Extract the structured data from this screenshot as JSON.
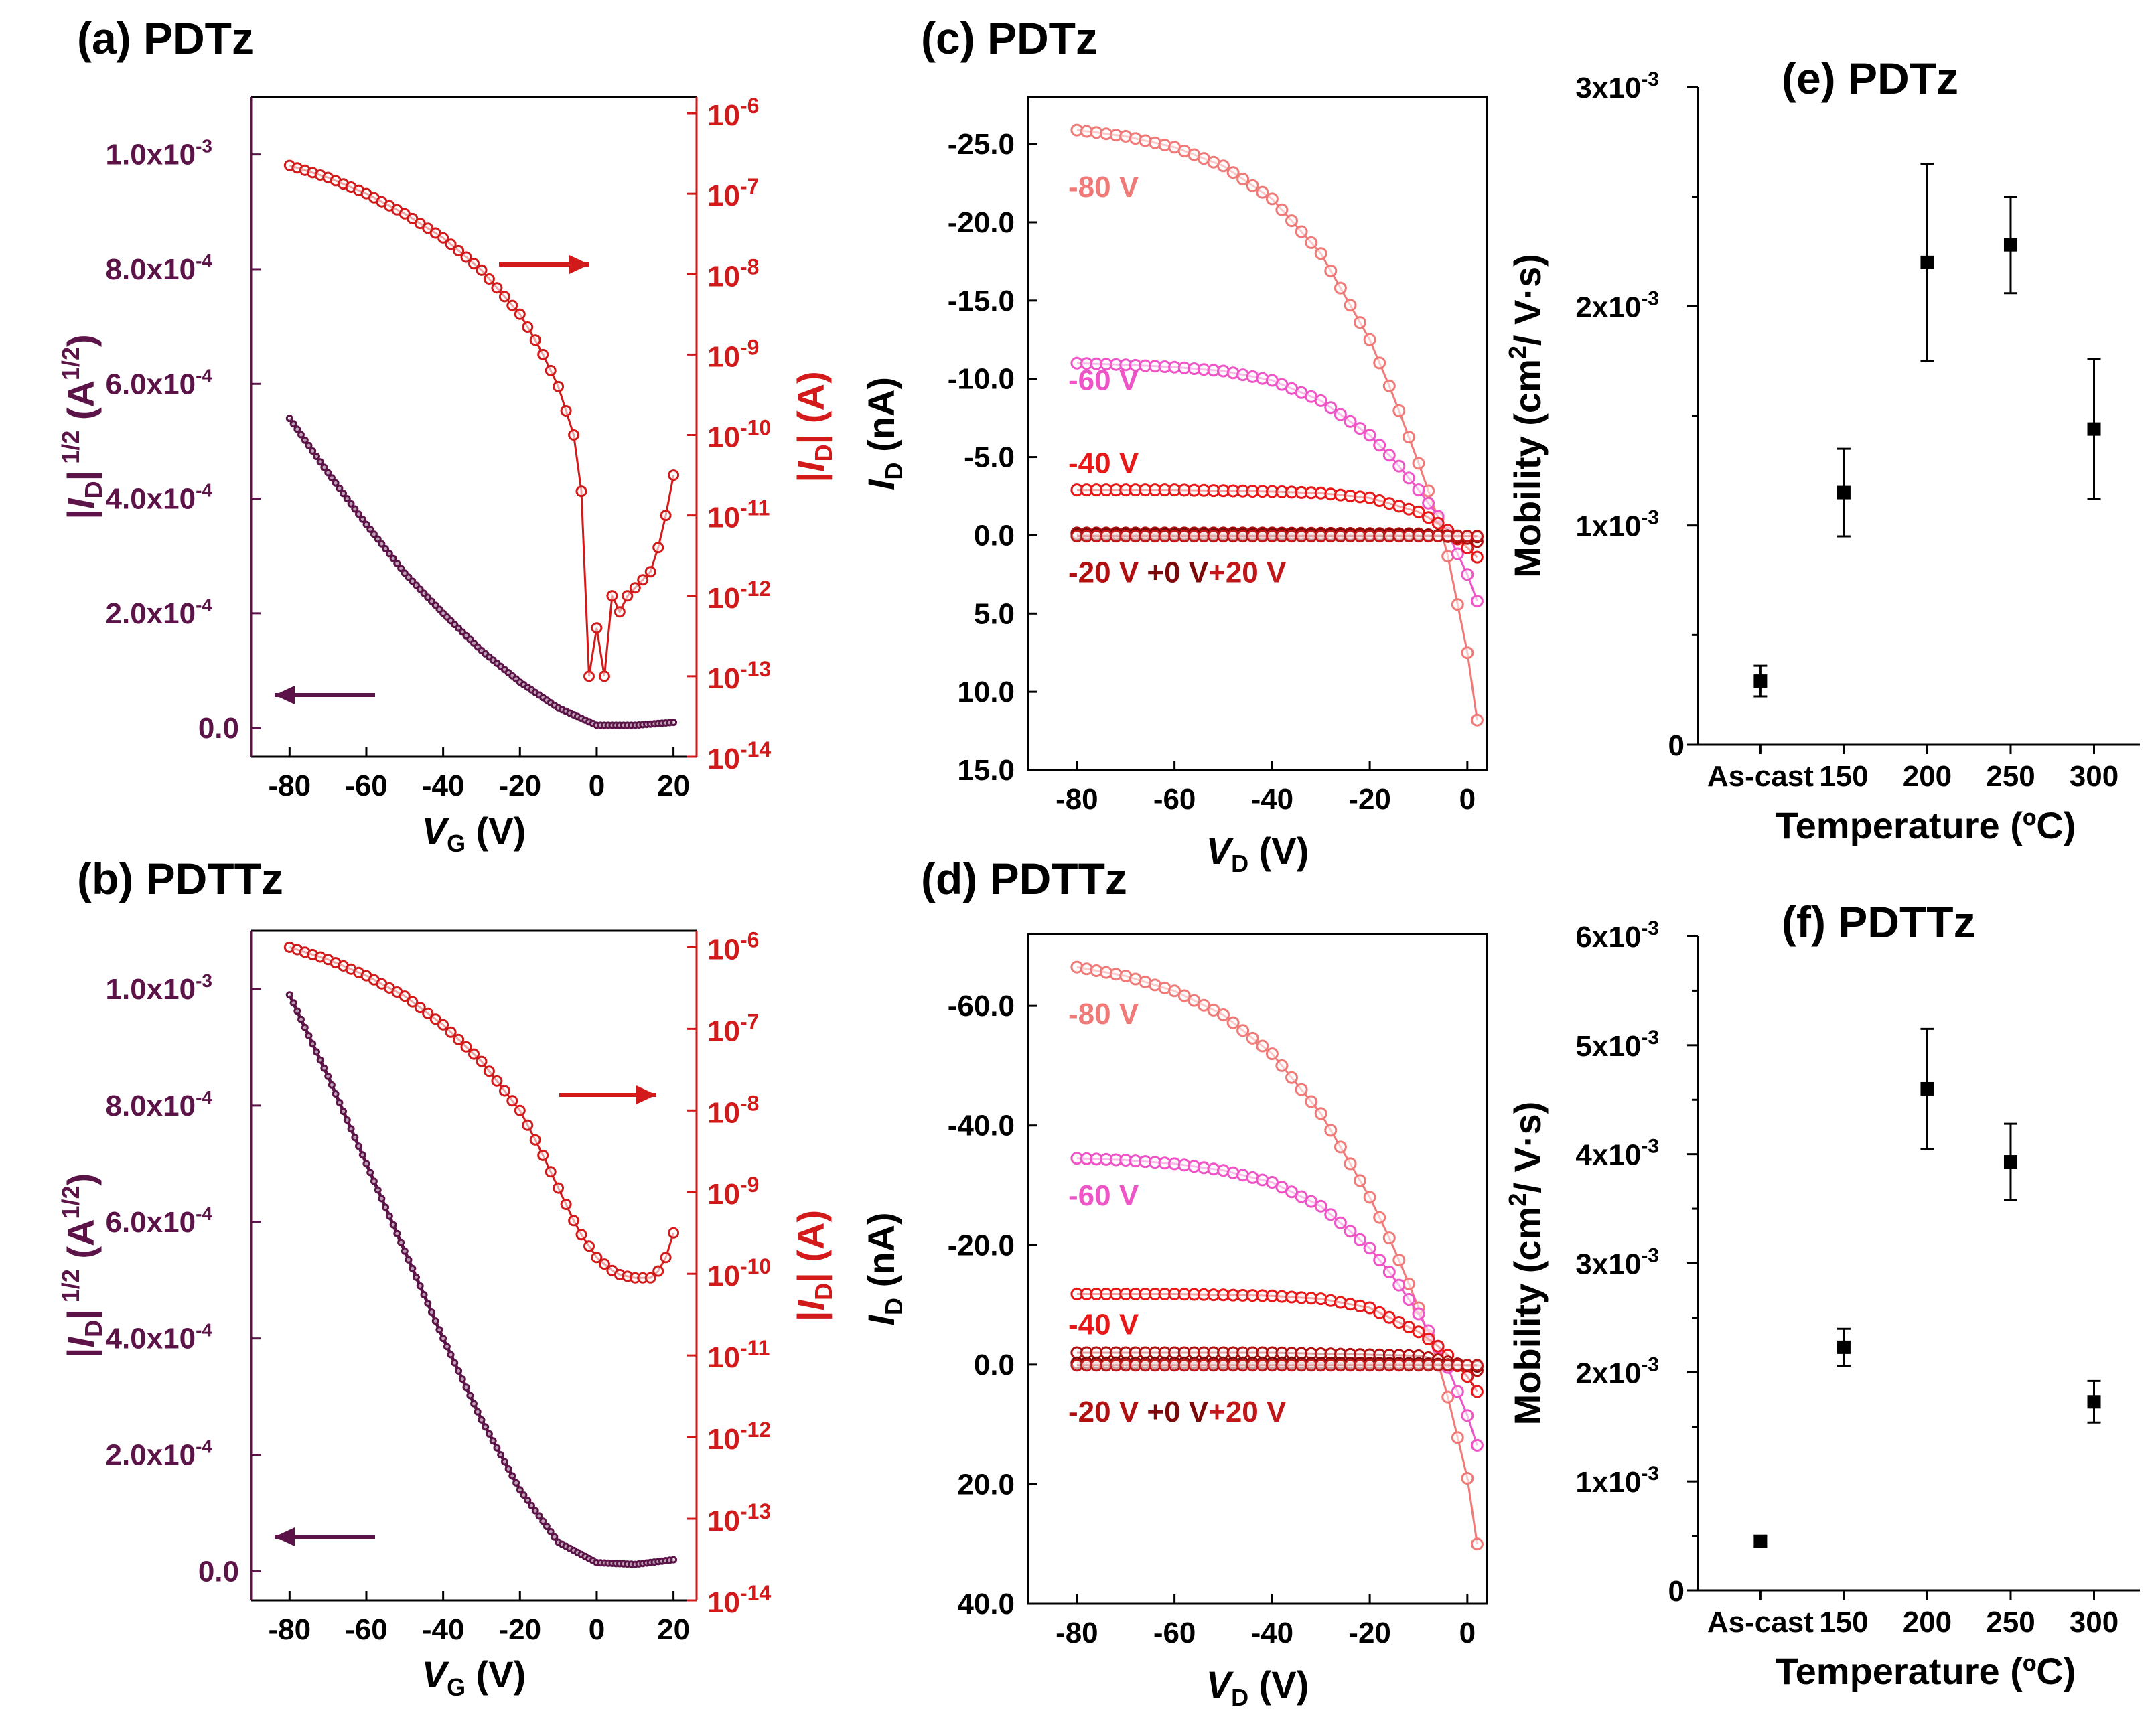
{
  "colors": {
    "maroon": "#5c1448",
    "red": "#d21a1a",
    "black": "#000000",
    "c80": "#f07a78",
    "c60": "#f055c8",
    "c40": "#e81818",
    "c20": "#b01010",
    "c0": "#7a0a0a",
    "cp20": "#c01818"
  },
  "chart_data": [
    {
      "panel": "a",
      "type": "line",
      "title": "(a) PDTz",
      "xlabel": "V_G (V)",
      "ylabel_left": "|I_D| 1/2 (A^1/2)",
      "ylabel_right": "|I_D| (A)",
      "xlim": [
        -90,
        26
      ],
      "ylim_left": [
        -5e-05,
        0.0011
      ],
      "ylim_right_log10": [
        -14,
        -5.8
      ],
      "xticks": [
        -80,
        -60,
        -40,
        -20,
        0,
        20
      ],
      "xticklabels": [
        "-80",
        "-60",
        "-40",
        "-20",
        "0",
        "20"
      ],
      "yticks_left": [
        0,
        0.0002,
        0.0004,
        0.0006,
        0.0008,
        0.001
      ],
      "yticklabels_left": [
        "0.0",
        "2.0x10",
        "4.0x10",
        "6.0x10",
        "8.0x10",
        "1.0x10"
      ],
      "yticklabels_left_exp": [
        "",
        "-4",
        "-4",
        "-4",
        "-4",
        "-3"
      ],
      "yticks_right": [
        -14,
        -13,
        -12,
        -11,
        -10,
        -9,
        -8,
        -7,
        -6
      ],
      "yticklabels_right": [
        "10",
        "10",
        "10",
        "10",
        "10",
        "10",
        "10",
        "10",
        "10"
      ],
      "yticklabels_right_exp": [
        "-14",
        "-13",
        "-12",
        "-11",
        "-10",
        "-9",
        "-8",
        "-7",
        "-6"
      ],
      "sqrt_series": {
        "name": "|I_D|^1/2",
        "axis": "left",
        "x": [
          -80,
          -70,
          -60,
          -50,
          -40,
          -30,
          -20,
          -10,
          0,
          10,
          20
        ],
        "y": [
          0.00054,
          0.000445,
          0.000355,
          0.00027,
          0.0002,
          0.000135,
          8e-05,
          3.5e-05,
          5e-06,
          5e-06,
          1e-05
        ]
      },
      "log_series": {
        "name": "|I_D|",
        "axis": "right",
        "x": [
          -80,
          -70,
          -60,
          -50,
          -40,
          -30,
          -20,
          -15,
          -10,
          -6,
          -4,
          -2,
          0,
          2,
          4,
          6,
          8,
          10,
          12,
          14,
          16,
          18,
          20
        ],
        "log10_y": [
          -6.65,
          -6.8,
          -7.0,
          -7.25,
          -7.55,
          -7.95,
          -8.5,
          -8.9,
          -9.4,
          -10.0,
          -10.7,
          -13.0,
          -12.4,
          -13.0,
          -12.0,
          -12.2,
          -12.0,
          -11.9,
          -11.8,
          -11.7,
          -11.4,
          -11.0,
          -10.5
        ]
      },
      "arrows": [
        "left",
        "right"
      ]
    },
    {
      "panel": "b",
      "type": "line",
      "title": "(b) PDTTz",
      "xlabel": "V_G (V)",
      "ylabel_left": "|I_D| 1/2 (A^1/2)",
      "ylabel_right": "|I_D| (A)",
      "xlim": [
        -90,
        26
      ],
      "ylim_left": [
        -5e-05,
        0.0011
      ],
      "ylim_right_log10": [
        -14,
        -5.8
      ],
      "xticks": [
        -80,
        -60,
        -40,
        -20,
        0,
        20
      ],
      "xticklabels": [
        "-80",
        "-60",
        "-40",
        "-20",
        "0",
        "20"
      ],
      "yticks_left": [
        0,
        0.0002,
        0.0004,
        0.0006,
        0.0008,
        0.001
      ],
      "yticklabels_left": [
        "0.0",
        "2.0x10",
        "4.0x10",
        "6.0x10",
        "8.0x10",
        "1.0x10"
      ],
      "yticklabels_left_exp": [
        "",
        "-4",
        "-4",
        "-4",
        "-4",
        "-3"
      ],
      "yticks_right": [
        -14,
        -13,
        -12,
        -11,
        -10,
        -9,
        -8,
        -7,
        -6
      ],
      "yticklabels_right": [
        "10",
        "10",
        "10",
        "10",
        "10",
        "10",
        "10",
        "10",
        "10"
      ],
      "yticklabels_right_exp": [
        "-14",
        "-13",
        "-12",
        "-11",
        "-10",
        "-9",
        "-8",
        "-7",
        "-6"
      ],
      "sqrt_series": {
        "name": "|I_D|^1/2",
        "axis": "left",
        "x": [
          -80,
          -70,
          -60,
          -50,
          -40,
          -30,
          -20,
          -10,
          0,
          10,
          20
        ],
        "y": [
          0.00099,
          0.00085,
          0.0007,
          0.00055,
          0.0004,
          0.00026,
          0.00014,
          5e-05,
          1.5e-05,
          1.2e-05,
          2e-05
        ]
      },
      "log_series": {
        "name": "|I_D|",
        "axis": "right",
        "x": [
          -80,
          -70,
          -60,
          -50,
          -40,
          -30,
          -20,
          -15,
          -10,
          -5,
          0,
          5,
          10,
          15,
          18,
          20
        ],
        "log10_y": [
          -6.0,
          -6.15,
          -6.35,
          -6.6,
          -6.95,
          -7.4,
          -8.0,
          -8.45,
          -8.95,
          -9.45,
          -9.8,
          -10.0,
          -10.05,
          -10.05,
          -9.8,
          -9.5
        ]
      },
      "arrows": [
        "left",
        "right"
      ]
    },
    {
      "panel": "c",
      "type": "line",
      "title": "(c) PDTz",
      "xlabel": "V_D (V)",
      "ylabel": "I_D (nA)",
      "xlim": [
        -90,
        4
      ],
      "ylim": [
        -28.0,
        15.0
      ],
      "xticks": [
        -80,
        -60,
        -40,
        -20,
        0
      ],
      "xticklabels": [
        "-80",
        "-60",
        "-40",
        "-20",
        "0"
      ],
      "yticks": [
        -25,
        -20,
        -15,
        -10,
        -5,
        0,
        5,
        10,
        15
      ],
      "yticklabels": [
        "-25.0",
        "-20.0",
        "-15.0",
        "-10.0",
        "-5.0",
        "0.0",
        "5.0",
        "10.0",
        "15.0"
      ],
      "series": [
        {
          "name": "-80 V",
          "x": [
            -80,
            -70,
            -60,
            -50,
            -40,
            -30,
            -20,
            -15,
            -10,
            -5,
            0,
            2
          ],
          "y": [
            -25.9,
            -25.5,
            -24.8,
            -23.6,
            -21.5,
            -18.0,
            -12.5,
            -8.8,
            -4.6,
            -0.2,
            7.5,
            11.8
          ]
        },
        {
          "name": "-60 V",
          "x": [
            -80,
            -70,
            -60,
            -50,
            -40,
            -30,
            -20,
            -15,
            -10,
            -5,
            0,
            2
          ],
          "y": [
            -11.0,
            -10.9,
            -10.75,
            -10.5,
            -9.9,
            -8.6,
            -6.4,
            -4.8,
            -2.9,
            -0.8,
            2.5,
            4.2
          ]
        },
        {
          "name": "-40 V",
          "x": [
            -80,
            -60,
            -40,
            -30,
            -20,
            -10,
            -5,
            0,
            2
          ],
          "y": [
            -2.9,
            -2.9,
            -2.8,
            -2.7,
            -2.4,
            -1.5,
            -0.6,
            0.8,
            1.4
          ]
        },
        {
          "name": "-20 V",
          "x": [
            -80,
            -40,
            -10,
            0,
            2
          ],
          "y": [
            -0.15,
            -0.15,
            -0.1,
            0.2,
            0.4
          ]
        },
        {
          "name": "+0 V",
          "x": [
            -80,
            -40,
            -10,
            0,
            2
          ],
          "y": [
            -0.05,
            -0.05,
            -0.02,
            0.05,
            0.1
          ]
        },
        {
          "name": "+20 V",
          "x": [
            -80,
            -40,
            -10,
            0,
            2
          ],
          "y": [
            0.05,
            0.05,
            0.05,
            0.05,
            0.05
          ]
        }
      ],
      "bottom_label": {
        "a": "-20 V",
        "b": "+0 V",
        "c": "+20 V"
      }
    },
    {
      "panel": "d",
      "type": "line",
      "title": "(d) PDTTz",
      "xlabel": "V_D (V)",
      "ylabel": "I_D (nA)",
      "xlim": [
        -90,
        4
      ],
      "ylim": [
        -72.0,
        40.0
      ],
      "xticks": [
        -80,
        -60,
        -40,
        -20,
        0
      ],
      "xticklabels": [
        "-80",
        "-60",
        "-40",
        "-20",
        "0"
      ],
      "yticks": [
        -60,
        -40,
        -20,
        0,
        20,
        40
      ],
      "yticklabels": [
        "-60.0",
        "-40.0",
        "-20.0",
        "0.0",
        "20.0",
        "40.0"
      ],
      "series": [
        {
          "name": "-80 V",
          "x": [
            -80,
            -70,
            -60,
            -50,
            -40,
            -30,
            -20,
            -15,
            -10,
            -5,
            0,
            2
          ],
          "y": [
            -66.5,
            -65.0,
            -62.5,
            -58.5,
            -52.0,
            -42.0,
            -28.0,
            -19.5,
            -9.5,
            2.0,
            19.0,
            30.0
          ]
        },
        {
          "name": "-60 V",
          "x": [
            -80,
            -70,
            -60,
            -50,
            -40,
            -30,
            -20,
            -15,
            -10,
            -5,
            0,
            2
          ],
          "y": [
            -34.5,
            -34.2,
            -33.6,
            -32.5,
            -30.5,
            -26.5,
            -19.5,
            -14.5,
            -8.5,
            -1.5,
            8.5,
            13.5
          ]
        },
        {
          "name": "-40 V",
          "x": [
            -80,
            -60,
            -40,
            -30,
            -20,
            -10,
            -5,
            0,
            2
          ],
          "y": [
            -11.8,
            -11.8,
            -11.5,
            -11.0,
            -9.5,
            -5.5,
            -2.5,
            2.0,
            4.5
          ]
        },
        {
          "name": "-20 V",
          "x": [
            -80,
            -40,
            -10,
            0,
            2
          ],
          "y": [
            -2.0,
            -2.0,
            -1.5,
            0.2,
            1.0
          ]
        },
        {
          "name": "+0 V",
          "x": [
            -80,
            -40,
            -10,
            0,
            2
          ],
          "y": [
            -0.3,
            -0.3,
            -0.2,
            0.1,
            0.3
          ]
        },
        {
          "name": "+20 V",
          "x": [
            -80,
            -40,
            -10,
            0,
            2
          ],
          "y": [
            0.1,
            0.1,
            0.1,
            0.1,
            0.1
          ]
        }
      ],
      "bottom_label": {
        "a": "-20 V",
        "b": "+0 V",
        "c": "+20 V"
      }
    },
    {
      "panel": "e",
      "type": "scatter",
      "title": "(e) PDTz",
      "xlabel": "Temperature (ºC)",
      "ylabel": "Mobility (cm^2/ V·s)",
      "categories": [
        "As-cast",
        "150",
        "200",
        "250",
        "300"
      ],
      "ylim": [
        0,
        0.003
      ],
      "yticks": [
        0,
        0.001,
        0.002,
        0.003
      ],
      "yticklabels": [
        "0",
        "1x10",
        "2x10",
        "3x10"
      ],
      "yticklabels_exp": [
        "",
        "-3",
        "-3",
        "-3"
      ],
      "values": [
        0.00029,
        0.00115,
        0.0022,
        0.00228,
        0.00144
      ],
      "errors": [
        7e-05,
        0.0002,
        0.00045,
        0.00022,
        0.00032
      ]
    },
    {
      "panel": "f",
      "type": "scatter",
      "title": "(f) PDTTz",
      "xlabel": "Temperature (ºC)",
      "ylabel": "Mobility (cm^2/ V·s)",
      "categories": [
        "As-cast",
        "150",
        "200",
        "250",
        "300"
      ],
      "ylim": [
        0,
        0.006
      ],
      "yticks": [
        0,
        0.001,
        0.002,
        0.003,
        0.004,
        0.005,
        0.006
      ],
      "yticklabels": [
        "0",
        "1x10",
        "2x10",
        "3x10",
        "4x10",
        "5x10",
        "6x10"
      ],
      "yticklabels_exp": [
        "",
        "-3",
        "-3",
        "-3",
        "-3",
        "-3",
        "-3"
      ],
      "values": [
        0.00045,
        0.00223,
        0.0046,
        0.00393,
        0.00173
      ],
      "errors": [
        5e-05,
        0.00017,
        0.00055,
        0.00035,
        0.00019
      ]
    }
  ]
}
